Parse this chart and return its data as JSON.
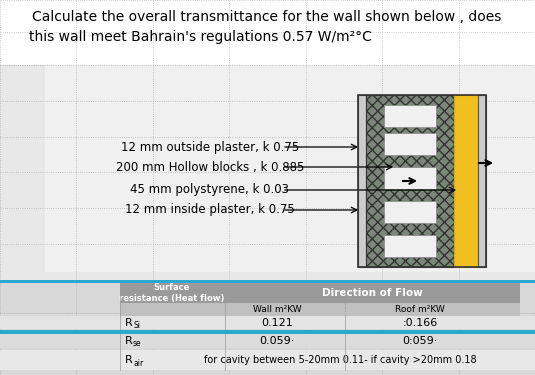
{
  "title_line1": "Calculate the overall transmittance for the wall shown below , does",
  "title_line2": "this wall meet Bahrain's regulations 0.57 W/m²°C",
  "layers": [
    "12 mm outside plaster, k 0.75",
    "200 mm Hollow blocks , k 0.885",
    "45 mm polystyrene, k 0.03",
    "12 mm inside plaster, k 0.75"
  ],
  "white_bg": "#ffffff",
  "body_bg": "#e8e8e8",
  "body_bg2": "#f0f0f0",
  "dotted_color": "#aaaaaa",
  "blue_bar": "#29a9d0",
  "table_header_bg": "#9a9a9a",
  "table_subheader_bg": "#c0c0c0",
  "table_row1_bg": "#e0e0e0",
  "table_row2_bg": "#d8d8d8",
  "table_row3_bg": "#e8e8e8",
  "hatch_bg": "#7a8a7a",
  "yellow": "#f0c010",
  "plaster_color": "#d0d0d0"
}
